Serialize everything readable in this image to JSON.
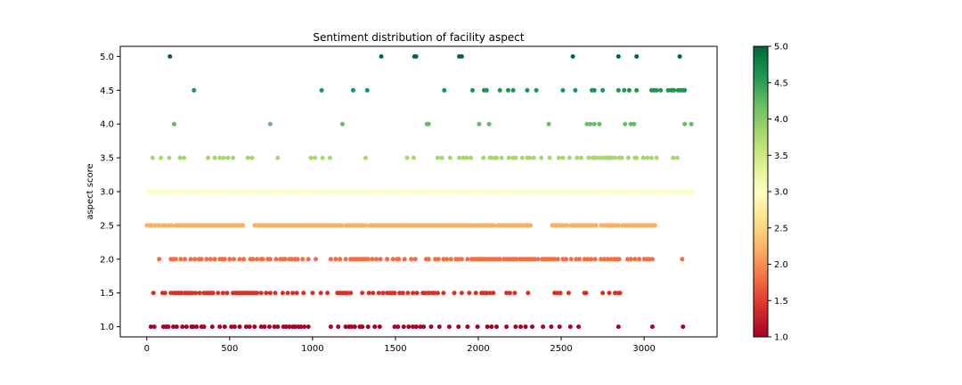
{
  "chart_data": {
    "type": "scatter",
    "title": "Sentiment distribution of facility aspect",
    "xlabel": "",
    "ylabel": "aspect score",
    "xlim": [
      -160,
      3440
    ],
    "ylim": [
      0.85,
      5.15
    ],
    "xticks": [
      "0",
      "500",
      "1000",
      "1500",
      "2000",
      "2500",
      "3000"
    ],
    "xtick_values": [
      0,
      500,
      1000,
      1500,
      2000,
      2500,
      3000
    ],
    "yticks": [
      "1.0",
      "1.5",
      "2.0",
      "2.5",
      "3.0",
      "3.5",
      "4.0",
      "4.5",
      "5.0"
    ],
    "ytick_values": [
      1.0,
      1.5,
      2.0,
      2.5,
      3.0,
      3.5,
      4.0,
      4.5,
      5.0
    ],
    "grid": false,
    "colormap": "RdYlGn",
    "colorbar": {
      "range": [
        1.0,
        5.0
      ],
      "ticks": [
        "1.0",
        "1.5",
        "2.0",
        "2.5",
        "3.0",
        "3.5",
        "4.0",
        "4.5",
        "5.0"
      ],
      "tick_values": [
        1.0,
        1.5,
        2.0,
        2.5,
        3.0,
        3.5,
        4.0,
        4.5,
        5.0
      ]
    },
    "series": [
      {
        "score": 5.0,
        "color": "#006837",
        "x": [
          140,
          1415,
          1615,
          1625,
          1885,
          1900,
          2570,
          2845,
          2955,
          3215
        ]
      },
      {
        "score": 4.5,
        "color": "#1a9850",
        "x": [
          285,
          1055,
          1245,
          1330,
          1795,
          1965,
          2035,
          2050,
          2130,
          2180,
          2210,
          2295,
          2350,
          2510,
          2585,
          2685,
          2700,
          2750,
          2845,
          2880,
          2910,
          2955,
          3045,
          3060,
          3075,
          3100,
          3145,
          3165,
          3180,
          3205,
          3220,
          3235,
          3245
        ]
      },
      {
        "score": 4.0,
        "color": "#66bd63",
        "x": [
          165,
          745,
          1180,
          1690,
          1700,
          2005,
          2065,
          2425,
          2655,
          2675,
          2700,
          2730,
          2885,
          2920,
          2940,
          3245,
          3285
        ]
      },
      {
        "score": 3.5,
        "color": "#a6d96a",
        "x": [
          35,
          85,
          135,
          200,
          225,
          370,
          410,
          440,
          465,
          490,
          520,
          610,
          635,
          790,
          990,
          1015,
          1060,
          1105,
          1320,
          1570,
          1610,
          1755,
          1780,
          1830,
          1885,
          1910,
          1930,
          1955,
          2030,
          2070,
          2080,
          2100,
          2110,
          2140,
          2185,
          2210,
          2225,
          2265,
          2295,
          2310,
          2335,
          2380,
          2430,
          2485,
          2510,
          2550,
          2595,
          2620,
          2665,
          2690,
          2700,
          2710,
          2730,
          2750,
          2770,
          2785,
          2795,
          2805,
          2825,
          2850,
          2865,
          2905,
          2945,
          2955,
          2995,
          3020,
          3045,
          3075,
          3175,
          3200
        ]
      },
      {
        "score": 3.0,
        "color": "#ffffbf",
        "x": [
          0,
          25,
          50,
          75,
          100,
          125,
          150,
          175,
          200,
          225,
          250,
          275,
          300,
          325,
          350,
          375,
          400,
          425,
          450,
          475,
          500,
          525,
          550,
          575,
          600,
          625,
          650,
          675,
          700,
          725,
          750,
          775,
          800,
          825,
          850,
          875,
          900,
          925,
          950,
          975,
          1000,
          1025,
          1050,
          1075,
          1100,
          1125,
          1150,
          1175,
          1200,
          1225,
          1250,
          1275,
          1300,
          1325,
          1350,
          1375,
          1400,
          1425,
          1450,
          1475,
          1500,
          1525,
          1550,
          1575,
          1600,
          1625,
          1650,
          1675,
          1700,
          1725,
          1750,
          1775,
          1800,
          1825,
          1850,
          1875,
          1900,
          1925,
          1950,
          1975,
          2000,
          2025,
          2050,
          2075,
          2100,
          2125,
          2150,
          2175,
          2200,
          2225,
          2250,
          2275,
          2300,
          2325,
          2350,
          2375,
          2400,
          2425,
          2450,
          2475,
          2500,
          2525,
          2550,
          2575,
          2600,
          2625,
          2650,
          2675,
          2700,
          2725,
          2750,
          2775,
          2800,
          2825,
          2850,
          2875,
          2900,
          2925,
          2950,
          2975,
          3000,
          3025,
          3050,
          3075,
          3100,
          3125,
          3150,
          3175,
          3200,
          3225,
          3250,
          3275,
          3290
        ]
      },
      {
        "score": 2.5,
        "color": "#fdae61",
        "x": [
          0,
          15,
          30,
          50,
          65,
          80,
          100,
          115,
          135,
          150,
          175,
          190,
          205,
          220,
          235,
          250,
          265,
          280,
          295,
          310,
          325,
          340,
          355,
          370,
          385,
          400,
          415,
          430,
          445,
          460,
          475,
          490,
          505,
          520,
          535,
          550,
          565,
          580,
          650,
          665,
          680,
          695,
          710,
          725,
          740,
          755,
          770,
          785,
          800,
          815,
          830,
          845,
          860,
          875,
          890,
          905,
          920,
          935,
          950,
          965,
          980,
          995,
          1010,
          1025,
          1040,
          1055,
          1070,
          1085,
          1100,
          1115,
          1130,
          1145,
          1160,
          1175,
          1200,
          1215,
          1230,
          1245,
          1260,
          1275,
          1290,
          1305,
          1320,
          1345,
          1360,
          1375,
          1390,
          1405,
          1420,
          1435,
          1450,
          1465,
          1480,
          1495,
          1510,
          1525,
          1540,
          1555,
          1570,
          1585,
          1600,
          1615,
          1630,
          1645,
          1660,
          1675,
          1690,
          1705,
          1720,
          1735,
          1750,
          1765,
          1780,
          1795,
          1810,
          1825,
          1840,
          1855,
          1870,
          1885,
          1900,
          1915,
          1930,
          1945,
          1960,
          1975,
          1990,
          2005,
          2020,
          2035,
          2050,
          2065,
          2080,
          2095,
          2120,
          2135,
          2150,
          2165,
          2180,
          2195,
          2210,
          2225,
          2240,
          2255,
          2270,
          2285,
          2300,
          2315,
          2445,
          2460,
          2475,
          2490,
          2505,
          2520,
          2535,
          2560,
          2575,
          2590,
          2605,
          2620,
          2635,
          2650,
          2665,
          2680,
          2695,
          2710,
          2740,
          2755,
          2770,
          2785,
          2800,
          2815,
          2830,
          2845,
          2870,
          2885,
          2900,
          2915,
          2930,
          2945,
          2960,
          2975,
          2990,
          3005,
          3020,
          3035,
          3050,
          3065
        ]
      },
      {
        "score": 2.0,
        "color": "#f46d43",
        "x": [
          75,
          145,
          160,
          175,
          205,
          230,
          265,
          290,
          315,
          330,
          360,
          385,
          410,
          440,
          455,
          470,
          500,
          525,
          560,
          585,
          625,
          640,
          665,
          690,
          700,
          730,
          745,
          780,
          805,
          820,
          835,
          860,
          875,
          895,
          910,
          940,
          975,
          1020,
          1110,
          1140,
          1165,
          1200,
          1230,
          1245,
          1260,
          1275,
          1290,
          1305,
          1320,
          1335,
          1360,
          1385,
          1410,
          1450,
          1485,
          1510,
          1520,
          1555,
          1595,
          1620,
          1685,
          1700,
          1740,
          1760,
          1790,
          1810,
          1835,
          1865,
          1880,
          1900,
          1935,
          1960,
          1975,
          1990,
          2000,
          2010,
          2020,
          2030,
          2045,
          2060,
          2075,
          2090,
          2105,
          2120,
          2130,
          2155,
          2170,
          2185,
          2200,
          2215,
          2230,
          2250,
          2265,
          2280,
          2295,
          2310,
          2325,
          2340,
          2360,
          2385,
          2400,
          2415,
          2430,
          2445,
          2460,
          2480,
          2510,
          2530,
          2560,
          2590,
          2610,
          2640,
          2660,
          2680,
          2705,
          2740,
          2760,
          2780,
          2800,
          2820,
          2835,
          2850,
          2900,
          2920,
          2945,
          2970,
          3000,
          3015,
          3030,
          3050,
          3230
        ]
      },
      {
        "score": 1.5,
        "color": "#d73027",
        "x": [
          40,
          95,
          110,
          145,
          165,
          180,
          195,
          210,
          230,
          245,
          260,
          275,
          295,
          320,
          345,
          360,
          375,
          390,
          400,
          430,
          460,
          485,
          520,
          535,
          550,
          565,
          575,
          585,
          595,
          605,
          620,
          635,
          650,
          665,
          690,
          720,
          745,
          775,
          820,
          850,
          880,
          905,
          945,
          1000,
          1050,
          1090,
          1150,
          1165,
          1180,
          1195,
          1210,
          1230,
          1300,
          1340,
          1365,
          1400,
          1425,
          1450,
          1465,
          1480,
          1495,
          1525,
          1545,
          1575,
          1605,
          1630,
          1665,
          1680,
          1700,
          1720,
          1735,
          1755,
          1790,
          1855,
          1900,
          1945,
          1985,
          2020,
          2035,
          2050,
          2070,
          2090,
          2170,
          2190,
          2220,
          2300,
          2460,
          2475,
          2495,
          2545,
          2640,
          2650,
          2750,
          2790,
          2825,
          2845,
          2855
        ]
      },
      {
        "score": 1.0,
        "color": "#a50026",
        "x": [
          25,
          45,
          100,
          115,
          130,
          160,
          180,
          215,
          240,
          270,
          280,
          300,
          330,
          345,
          395,
          440,
          470,
          510,
          530,
          560,
          600,
          620,
          650,
          690,
          710,
          740,
          770,
          790,
          825,
          840,
          860,
          880,
          895,
          915,
          930,
          950,
          975,
          1110,
          1155,
          1200,
          1220,
          1235,
          1255,
          1285,
          1300,
          1335,
          1375,
          1405,
          1495,
          1515,
          1550,
          1580,
          1605,
          1625,
          1650,
          1670,
          1715,
          1765,
          1825,
          1880,
          1935,
          1995,
          2055,
          2080,
          2110,
          2170,
          2225,
          2255,
          2285,
          2325,
          2390,
          2440,
          2490,
          2555,
          2605,
          2845,
          3050,
          3235
        ]
      }
    ]
  }
}
